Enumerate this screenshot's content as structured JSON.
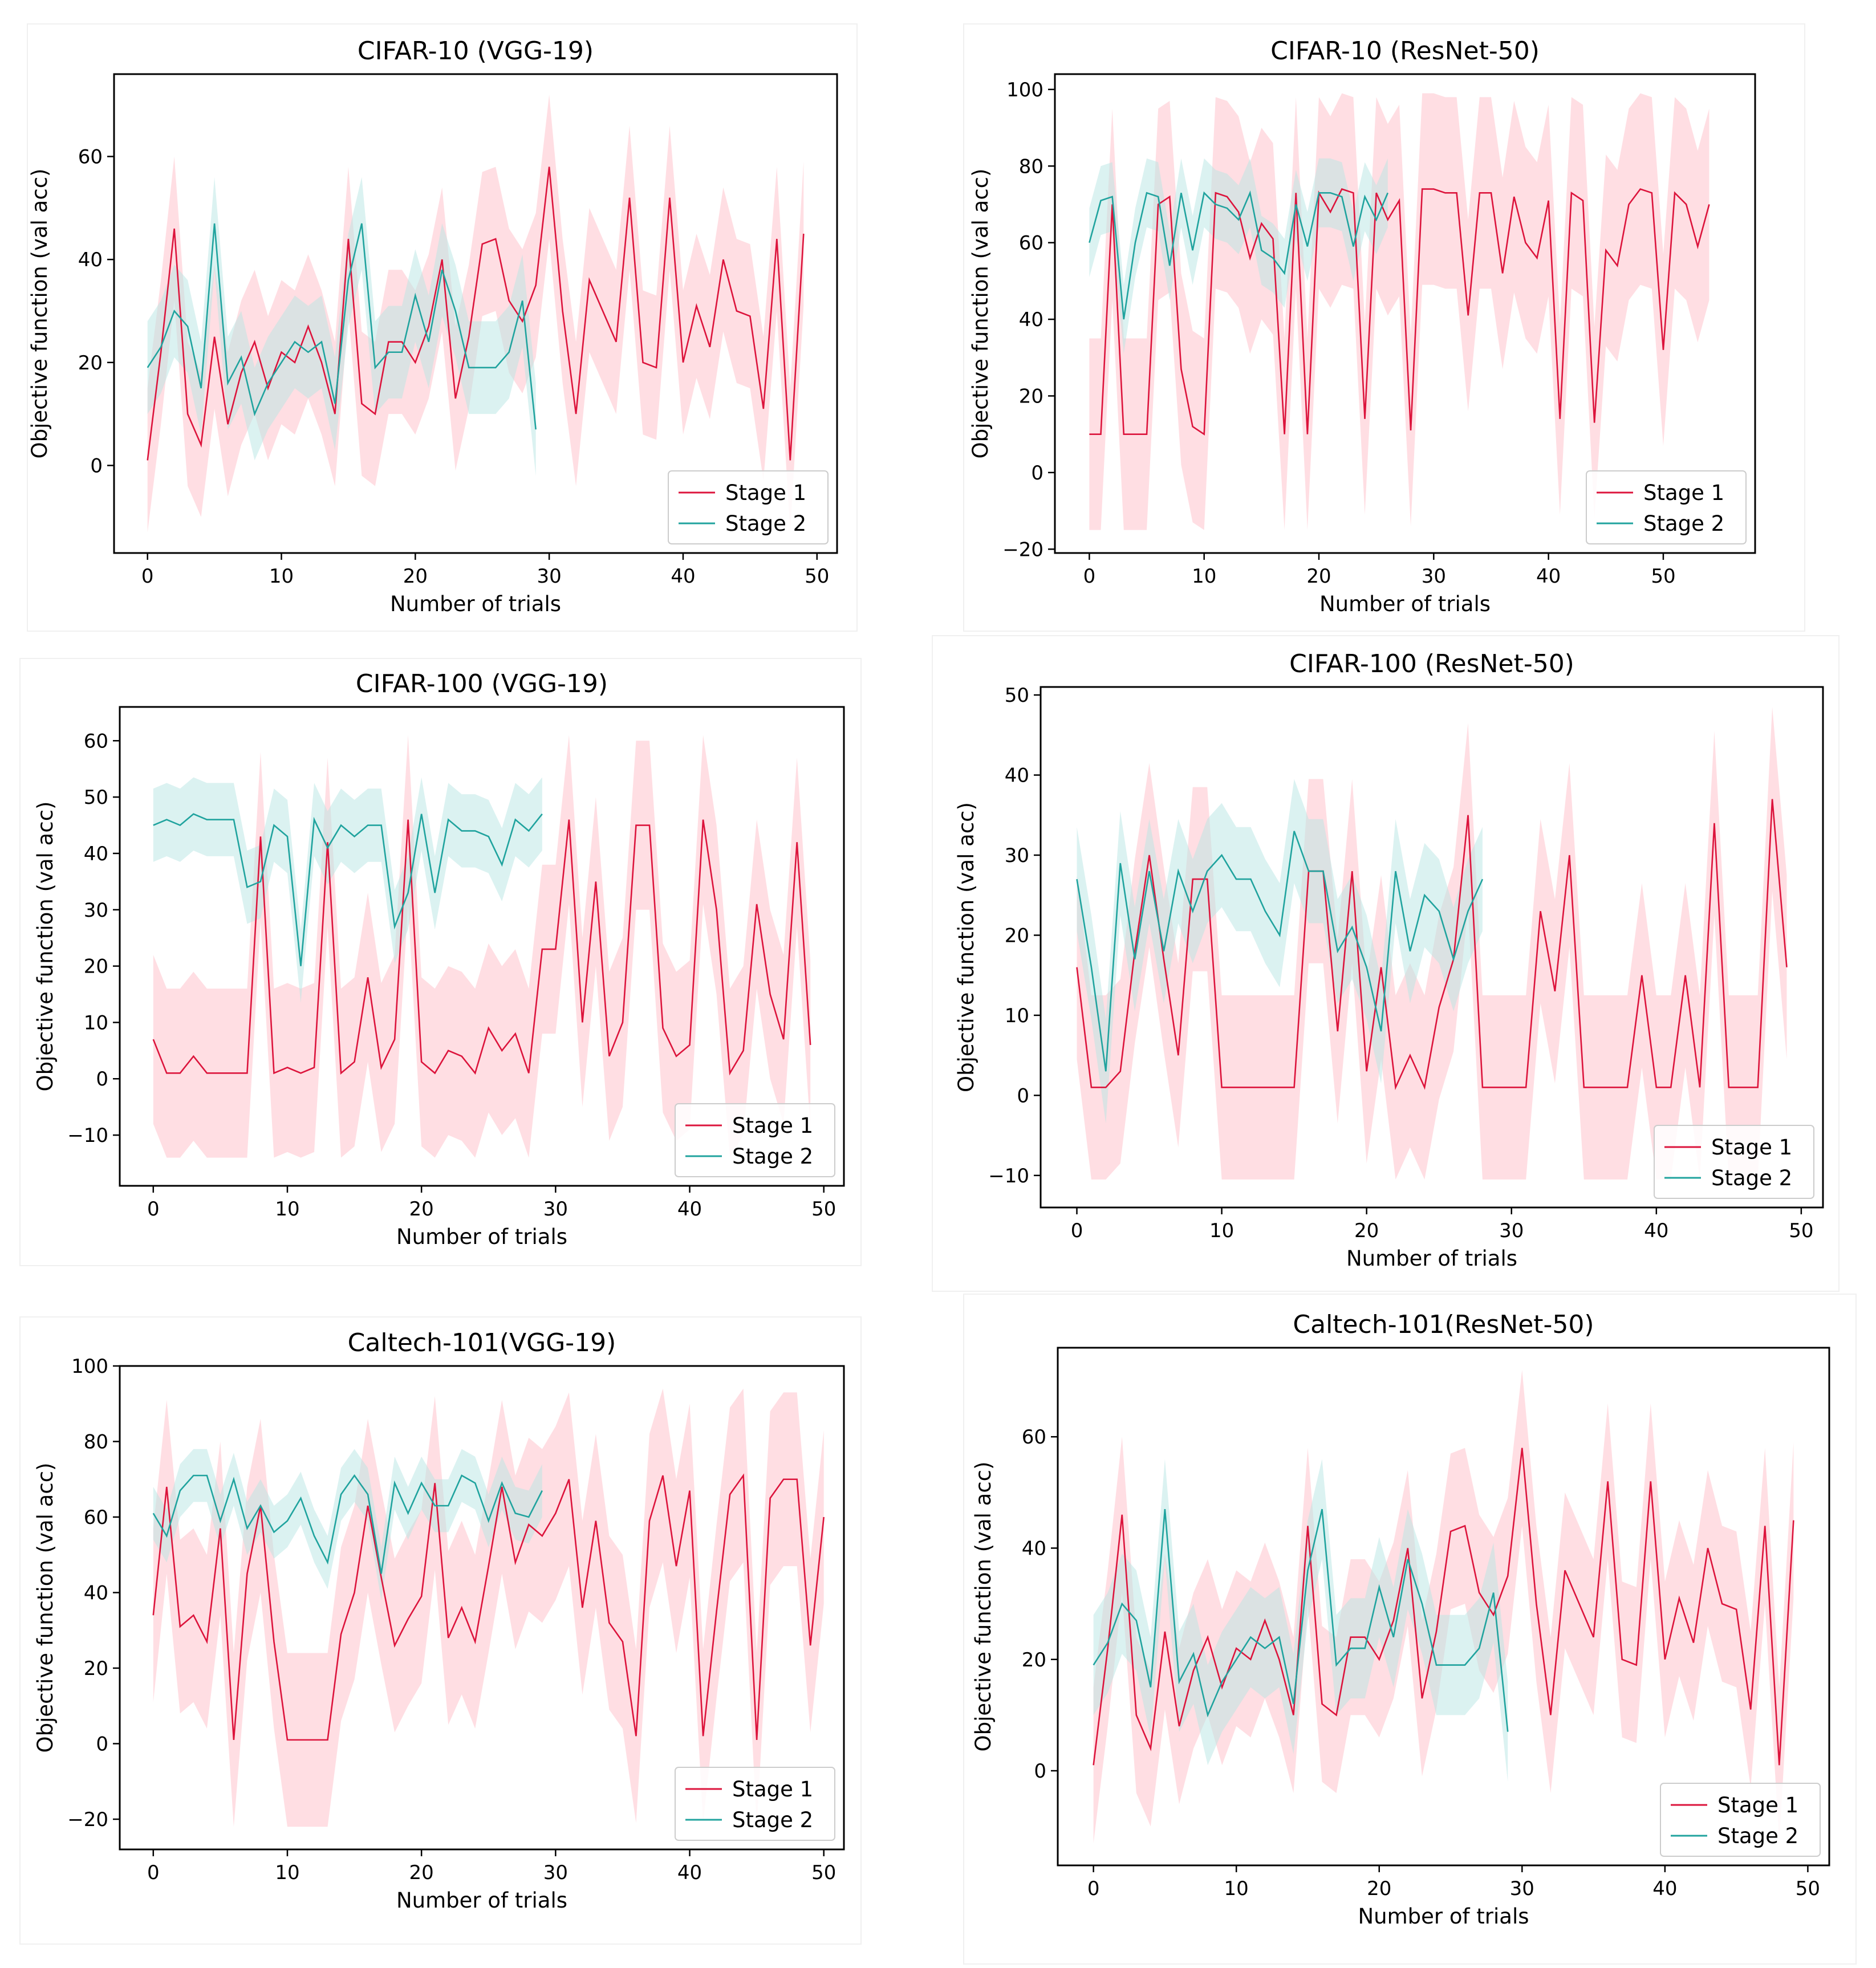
{
  "colors": {
    "stage1": "#dc143c",
    "stage2": "#20a39e",
    "stage1_band": "#ffb6c1",
    "stage2_band": "#b8e6e3"
  },
  "chart_data": [
    {
      "type": "line",
      "title": "CIFAR-10 (VGG-19)",
      "xlabel": "Number of trials",
      "ylabel": "Objective function (val acc)",
      "xlim": [
        -2.5,
        51.5
      ],
      "ylim": [
        -17,
        76
      ],
      "xticks": [
        0,
        10,
        20,
        30,
        40,
        50
      ],
      "yticks": [
        0,
        20,
        40,
        60
      ],
      "legend": {
        "position": "lower-right",
        "labels": [
          "Stage 1",
          "Stage 2"
        ]
      },
      "series": [
        {
          "name": "Stage 1",
          "color": "#dc143c",
          "band_color": "#ffb6c1",
          "band_width": 14,
          "y": [
            1,
            22,
            46,
            10,
            4,
            25,
            8,
            18,
            24,
            15,
            22,
            20,
            27,
            20,
            10,
            44,
            12,
            10,
            24,
            24,
            20,
            27,
            40,
            13,
            25,
            43,
            44,
            32,
            28,
            35,
            58,
            30,
            10,
            36,
            30,
            24,
            52,
            20,
            19,
            52,
            20,
            31,
            23,
            40,
            30,
            29,
            11,
            44,
            1,
            45
          ]
        },
        {
          "name": "Stage 2",
          "color": "#20a39e",
          "band_color": "#b8e6e3",
          "band_width": 9,
          "y": [
            19,
            23,
            30,
            27,
            15,
            47,
            16,
            21,
            10,
            16,
            20,
            24,
            22,
            24,
            12,
            36,
            47,
            19,
            22,
            22,
            33,
            24,
            38,
            30,
            19,
            19,
            19,
            22,
            32,
            7
          ]
        }
      ]
    },
    {
      "type": "line",
      "title": "CIFAR-10 (ResNet-50)",
      "xlabel": "Number of trials",
      "ylabel": "Objective function (val acc)",
      "xlim": [
        -3,
        58
      ],
      "ylim": [
        -21,
        104
      ],
      "xticks": [
        0,
        10,
        20,
        30,
        40,
        50
      ],
      "yticks": [
        -20,
        0,
        20,
        40,
        60,
        80,
        100
      ],
      "legend": {
        "position": "lower-right",
        "labels": [
          "Stage 1",
          "Stage 2"
        ]
      },
      "series": [
        {
          "name": "Stage 1",
          "color": "#dc143c",
          "band_color": "#ffb6c1",
          "band_width": 25,
          "y": [
            10,
            10,
            70,
            10,
            10,
            10,
            70,
            72,
            27,
            12,
            10,
            73,
            72,
            68,
            56,
            65,
            61,
            10,
            73,
            10,
            73,
            68,
            74,
            73,
            14,
            73,
            66,
            71,
            11,
            74,
            74,
            73,
            73,
            41,
            73,
            73,
            52,
            72,
            60,
            56,
            71,
            14,
            73,
            71,
            13,
            58,
            54,
            70,
            74,
            73,
            32,
            73,
            70,
            59,
            70
          ]
        },
        {
          "name": "Stage 2",
          "color": "#20a39e",
          "band_color": "#b8e6e3",
          "band_width": 9,
          "y": [
            60,
            71,
            72,
            40,
            60,
            73,
            72,
            54,
            73,
            58,
            73,
            70,
            69,
            66,
            73,
            58,
            56,
            52,
            70,
            59,
            73,
            73,
            72,
            59,
            72,
            66,
            73
          ]
        }
      ]
    },
    {
      "type": "line",
      "title": "CIFAR-100 (VGG-19)",
      "xlabel": "Number of trials",
      "ylabel": "Objective function (val acc)",
      "xlim": [
        -2.5,
        51.5
      ],
      "ylim": [
        -19,
        66
      ],
      "xticks": [
        0,
        10,
        20,
        30,
        40,
        50
      ],
      "yticks": [
        -10,
        0,
        10,
        20,
        30,
        40,
        50,
        60
      ],
      "legend": {
        "position": "lower-right",
        "labels": [
          "Stage 1",
          "Stage 2"
        ]
      },
      "series": [
        {
          "name": "Stage 1",
          "color": "#dc143c",
          "band_color": "#ffb6c1",
          "band_width": 15,
          "y": [
            7,
            1,
            1,
            4,
            1,
            1,
            1,
            1,
            43,
            1,
            2,
            1,
            2,
            42,
            1,
            3,
            18,
            2,
            7,
            46,
            3,
            1,
            5,
            4,
            1,
            9,
            5,
            8,
            1,
            23,
            23,
            46,
            10,
            35,
            4,
            10,
            45,
            45,
            9,
            4,
            6,
            46,
            30,
            1,
            5,
            31,
            15,
            7,
            42,
            6
          ]
        },
        {
          "name": "Stage 2",
          "color": "#20a39e",
          "band_color": "#b8e6e3",
          "band_width": 6.5,
          "y": [
            45,
            46,
            45,
            47,
            46,
            46,
            46,
            34,
            35,
            45,
            43,
            20,
            46,
            41,
            45,
            43,
            45,
            45,
            27,
            33,
            47,
            33,
            46,
            44,
            44,
            43,
            38,
            46,
            44,
            47
          ]
        }
      ]
    },
    {
      "type": "line",
      "title": "CIFAR-100 (ResNet-50)",
      "xlabel": "Number of trials",
      "ylabel": "Objective function (val acc)",
      "xlim": [
        -2.5,
        51.5
      ],
      "ylim": [
        -14,
        51
      ],
      "xticks": [
        0,
        10,
        20,
        30,
        40,
        50
      ],
      "yticks": [
        -10,
        0,
        10,
        20,
        30,
        40,
        50
      ],
      "legend": {
        "position": "lower-right",
        "labels": [
          "Stage 1",
          "Stage 2"
        ]
      },
      "series": [
        {
          "name": "Stage 1",
          "color": "#dc143c",
          "band_color": "#ffb6c1",
          "band_width": 11.5,
          "y": [
            16,
            1,
            1,
            3,
            18,
            30,
            17,
            5,
            27,
            27,
            1,
            1,
            1,
            1,
            1,
            1,
            28,
            28,
            8,
            28,
            3,
            16,
            1,
            5,
            1,
            11,
            17,
            35,
            1,
            1,
            1,
            1,
            23,
            13,
            30,
            1,
            1,
            1,
            1,
            15,
            1,
            1,
            15,
            1,
            34,
            1,
            1,
            1,
            37,
            16
          ]
        },
        {
          "name": "Stage 2",
          "color": "#20a39e",
          "band_color": "#b8e6e3",
          "band_width": 6.5,
          "y": [
            27,
            16,
            3,
            29,
            17,
            28,
            18,
            28,
            23,
            28,
            30,
            27,
            27,
            23,
            20,
            33,
            28,
            28,
            18,
            21,
            16,
            8,
            28,
            18,
            25,
            23,
            17,
            23,
            27
          ]
        }
      ]
    },
    {
      "type": "line",
      "title": "Caltech-101(VGG-19)",
      "xlabel": "Number of trials",
      "ylabel": "Objective function (val acc)",
      "xlim": [
        -2.5,
        51.5
      ],
      "ylim": [
        -28,
        100
      ],
      "xticks": [
        0,
        10,
        20,
        30,
        40,
        50
      ],
      "yticks": [
        -20,
        0,
        20,
        40,
        60,
        80,
        100
      ],
      "legend": {
        "position": "lower-right",
        "labels": [
          "Stage 1",
          "Stage 2"
        ]
      },
      "series": [
        {
          "name": "Stage 1",
          "color": "#dc143c",
          "band_color": "#ffb6c1",
          "band_width": 23,
          "y": [
            34,
            68,
            31,
            34,
            27,
            57,
            1,
            45,
            63,
            27,
            1,
            1,
            1,
            1,
            29,
            40,
            63,
            44,
            26,
            33,
            39,
            69,
            28,
            36,
            27,
            47,
            68,
            48,
            58,
            55,
            61,
            70,
            36,
            59,
            32,
            27,
            2,
            59,
            71,
            47,
            67,
            2,
            35,
            66,
            71,
            1,
            65,
            70,
            70,
            26,
            60
          ]
        },
        {
          "name": "Stage 2",
          "color": "#20a39e",
          "band_color": "#b8e6e3",
          "band_width": 7,
          "y": [
            61,
            55,
            67,
            71,
            71,
            59,
            70,
            57,
            63,
            56,
            59,
            65,
            55,
            48,
            66,
            71,
            66,
            45,
            69,
            61,
            69,
            63,
            63,
            71,
            69,
            59,
            69,
            61,
            60,
            67
          ]
        }
      ]
    },
    {
      "type": "line",
      "title": "Caltech-101(ResNet-50)",
      "xlabel": "Number of trials",
      "ylabel": "Objective function (val acc)",
      "xlim": [
        -2.5,
        51.5
      ],
      "ylim": [
        -17,
        76
      ],
      "xticks": [
        0,
        10,
        20,
        30,
        40,
        50
      ],
      "yticks": [
        0,
        20,
        40,
        60
      ],
      "legend": {
        "position": "lower-right",
        "labels": [
          "Stage 1",
          "Stage 2"
        ]
      },
      "series": [
        {
          "name": "Stage 1",
          "color": "#dc143c",
          "band_color": "#ffb6c1",
          "band_width": 14,
          "y": [
            1,
            22,
            46,
            10,
            4,
            25,
            8,
            18,
            24,
            15,
            22,
            20,
            27,
            20,
            10,
            44,
            12,
            10,
            24,
            24,
            20,
            27,
            40,
            13,
            25,
            43,
            44,
            32,
            28,
            35,
            58,
            30,
            10,
            36,
            30,
            24,
            52,
            20,
            19,
            52,
            20,
            31,
            23,
            40,
            30,
            29,
            11,
            44,
            1,
            45
          ]
        },
        {
          "name": "Stage 2",
          "color": "#20a39e",
          "band_color": "#b8e6e3",
          "band_width": 9,
          "y": [
            19,
            23,
            30,
            27,
            15,
            47,
            16,
            21,
            10,
            16,
            20,
            24,
            22,
            24,
            12,
            36,
            47,
            19,
            22,
            22,
            33,
            24,
            38,
            30,
            19,
            19,
            19,
            22,
            32,
            7
          ]
        }
      ]
    }
  ]
}
